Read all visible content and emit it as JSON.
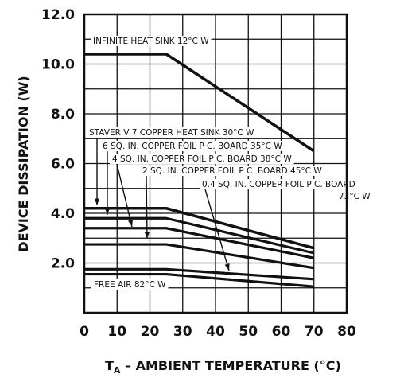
{
  "chart_data": {
    "type": "line",
    "xlabel_main": "T",
    "xlabel_sub": "A",
    "xlabel_rest": " – AMBIENT TEMPERATURE (°C)",
    "ylabel": "DEVICE DISSIPATION (W)",
    "xlim": [
      0,
      80
    ],
    "ylim": [
      0,
      12
    ],
    "x_ticks": [
      "0",
      "10",
      "20",
      "30",
      "40",
      "50",
      "60",
      "70",
      "80"
    ],
    "y_ticks": [
      "2.0",
      "4.0",
      "6.0",
      "8.0",
      "10.0",
      "12.0"
    ],
    "grid": true,
    "series": [
      {
        "name": "INFINITE HEAT SINK   12°C W",
        "x": [
          0,
          25,
          70
        ],
        "y": [
          10.4,
          10.4,
          6.5
        ]
      },
      {
        "name": "STAVER V 7 COPPER HEAT SINK   30°C W",
        "x": [
          0,
          25,
          70
        ],
        "y": [
          4.2,
          4.2,
          2.6
        ]
      },
      {
        "name": "6 SQ. IN. COPPER FOIL P C. BOARD   35°C W",
        "x": [
          0,
          25,
          70
        ],
        "y": [
          3.8,
          3.8,
          2.4
        ]
      },
      {
        "name": "4 SQ. IN. COPPER FOIL P C. BOARD   38°C W",
        "x": [
          0,
          25,
          70
        ],
        "y": [
          3.4,
          3.4,
          2.2
        ]
      },
      {
        "name": "2 SQ. IN. COPPER FOIL P C. BOARD   45°C W",
        "x": [
          0,
          25,
          70
        ],
        "y": [
          2.75,
          2.75,
          1.8
        ]
      },
      {
        "name": "0.4 SQ. IN. COPPER FOIL P C. BOARD 73°C W",
        "x": [
          0,
          25,
          70
        ],
        "y": [
          1.75,
          1.75,
          1.35
        ]
      },
      {
        "name": "FREE AIR   82°C W",
        "x": [
          0,
          25,
          70
        ],
        "y": [
          1.55,
          1.55,
          1.05
        ]
      }
    ],
    "annotations": [
      {
        "text": "INFINITE HEAT SINK   12°C W"
      },
      {
        "text": "STAVER V 7 COPPER HEAT SINK   30°C W"
      },
      {
        "text": "6 SQ. IN. COPPER FOIL P C. BOARD   35°C W"
      },
      {
        "text": "4 SQ. IN. COPPER FOIL P C. BOARD   38°C W"
      },
      {
        "text": "2 SQ. IN. COPPER FOIL P C. BOARD   45°C W"
      },
      {
        "text": "0.4 SQ. IN. COPPER FOIL P C. BOARD"
      },
      {
        "text": "73°C W"
      },
      {
        "text": "FREE AIR   82°C W"
      }
    ]
  }
}
